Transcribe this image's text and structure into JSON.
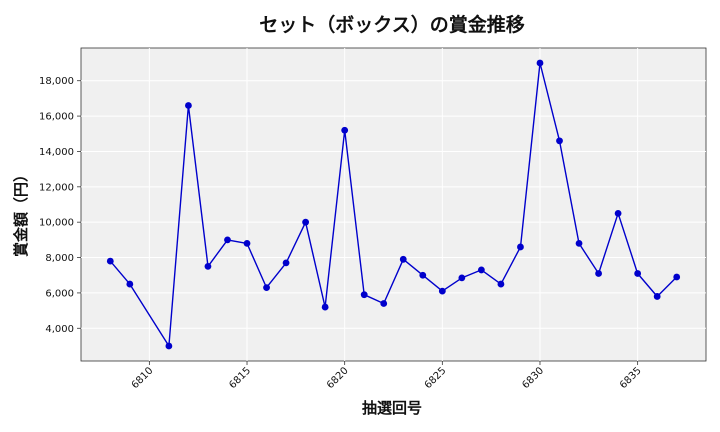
{
  "chart_data": {
    "type": "line",
    "title": "セット（ボックス）の賞金推移",
    "xlabel": "抽選回号",
    "ylabel": "賞金額（円）",
    "x": [
      6808,
      6809,
      6811,
      6812,
      6813,
      6814,
      6815,
      6816,
      6817,
      6818,
      6819,
      6820,
      6821,
      6822,
      6823,
      6824,
      6825,
      6826,
      6827,
      6828,
      6829,
      6830,
      6831,
      6832,
      6833,
      6834,
      6835,
      6836,
      6837
    ],
    "series": [
      {
        "values": [
          7800,
          6500,
          3000,
          16600,
          7500,
          9000,
          8800,
          6300,
          7700,
          10000,
          5200,
          15200,
          5900,
          5400,
          7900,
          7000,
          6100,
          6850,
          7300,
          6500,
          8600,
          19000,
          14600,
          8800,
          7100,
          10500,
          7100,
          5800,
          6900
        ],
        "color": "#0000cc"
      }
    ],
    "xlim": [
      6806.5,
      6838.5
    ],
    "ylim": [
      2150,
      19850
    ],
    "x_ticks": [
      "6810",
      "6815",
      "6820",
      "6825",
      "6830",
      "6835"
    ],
    "y_ticks": [
      "4,000",
      "6,000",
      "8,000",
      "10,000",
      "12,000",
      "14,000",
      "16,000",
      "18,000"
    ],
    "grid": true,
    "legend": "none",
    "plot_background": "#f0f0f0"
  }
}
